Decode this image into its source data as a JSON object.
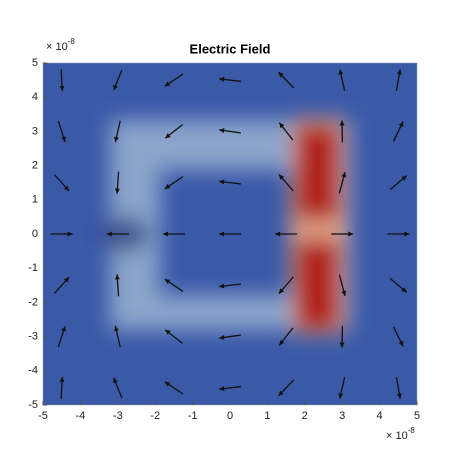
{
  "chart_data": {
    "type": "quiver",
    "title": "Electric Field",
    "y_multiplier": {
      "base": "× 10",
      "exponent": "-8"
    },
    "x_multiplier": {
      "base": "× 10",
      "exponent": "-8"
    },
    "xlim": [
      -5,
      5
    ],
    "ylim": [
      -5,
      5
    ],
    "xticks": [
      -5,
      -4,
      -3,
      -2,
      -1,
      0,
      1,
      2,
      3,
      4,
      5
    ],
    "yticks": [
      -5,
      -4,
      -3,
      -2,
      -1,
      0,
      1,
      2,
      3,
      4,
      5
    ],
    "arrows": {
      "x": [
        -4.5,
        -3,
        -1.5,
        0,
        1.5,
        3,
        4.5
      ],
      "y": [
        4.5,
        3,
        1.5,
        0,
        -1.5,
        -3,
        -4.5
      ],
      "angle": [
        [
          -87,
          -112,
          -146,
          173,
          134,
          103,
          80
        ],
        [
          -72,
          -103,
          -142,
          172,
          128,
          91,
          64
        ],
        [
          -48,
          -94,
          -146,
          173,
          131,
          75,
          40
        ],
        [
          0,
          180,
          180,
          180,
          180,
          0,
          0
        ],
        [
          48,
          94,
          146,
          -173,
          -131,
          -75,
          -40
        ],
        [
          72,
          103,
          142,
          -172,
          -128,
          -91,
          -64
        ],
        [
          87,
          112,
          146,
          -173,
          -134,
          -103,
          -80
        ]
      ],
      "color": "#111111"
    },
    "colors": {
      "low": "#3a5aa8",
      "high": "#b0241c"
    }
  }
}
